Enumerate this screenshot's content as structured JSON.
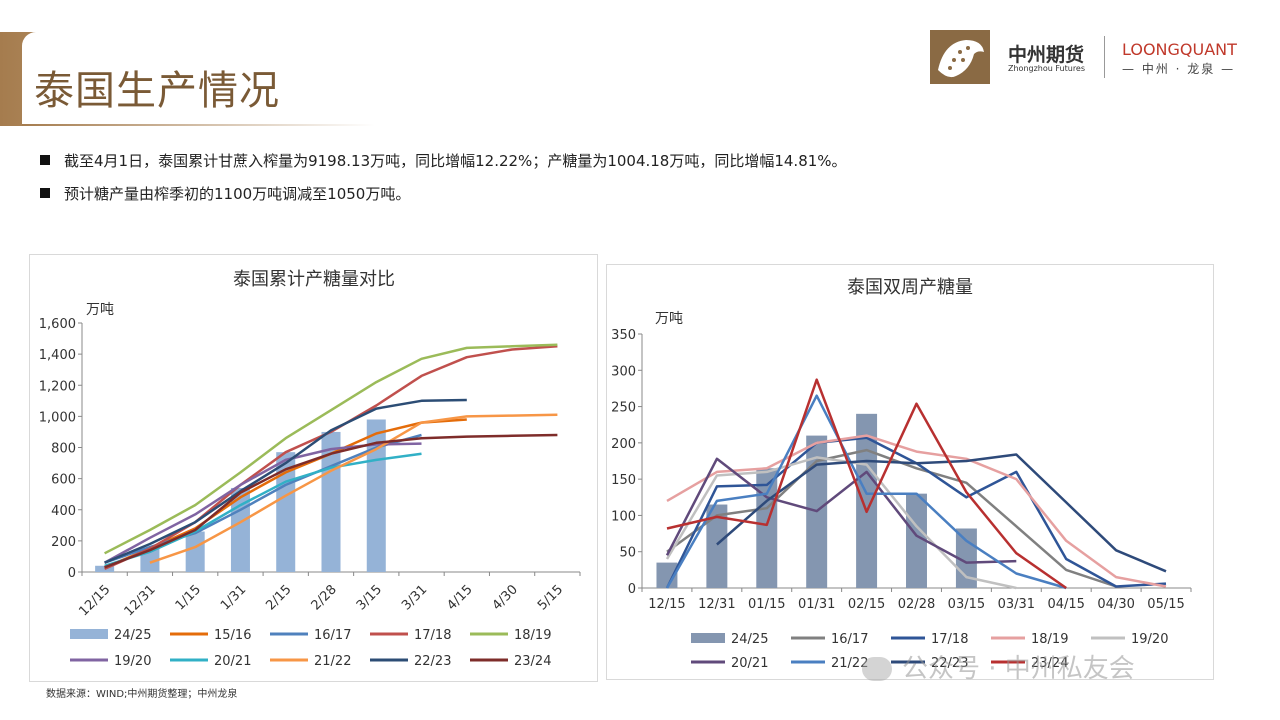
{
  "page": {
    "title": "泰国生产情况",
    "bullets": [
      "截至4月1日，泰国累计甘蔗入榨量为9198.13万吨，同比增幅12.22%；产糖量为1004.18万吨，同比增幅14.81%。",
      "预计糖产量由榨季初的1100万吨调减至1050万吨。"
    ],
    "source": "数据来源：WIND;中州期货整理；中州龙泉",
    "watermark": "公众号 · 中州私友会"
  },
  "logo": {
    "cn": "中州期货",
    "en": "Zhongzhou Futures",
    "lq": "LOONGQUANT",
    "lq_sub": "— 中州 · 龙泉 —"
  },
  "chart_data": [
    {
      "type": "bar+line",
      "title": "泰国累计产糖量对比",
      "ylabel": "万吨",
      "ylim": [
        0,
        1600
      ],
      "yticks": [
        "0",
        "200",
        "400",
        "600",
        "800",
        "1,000",
        "1,200",
        "1,400",
        "1,600"
      ],
      "categories": [
        "12/15",
        "12/31",
        "1/15",
        "1/31",
        "2/15",
        "2/28",
        "3/15",
        "3/31",
        "4/15",
        "4/30",
        "5/15"
      ],
      "legend": "bottom",
      "bar_series": {
        "name": "24/25",
        "color": "#95b3d7",
        "values": [
          40,
          150,
          260,
          540,
          770,
          900,
          980,
          null,
          null,
          null,
          null
        ]
      },
      "series": [
        {
          "name": "15/16",
          "color": "#e46c0a",
          "values": [
            30,
            150,
            280,
            480,
            640,
            760,
            890,
            960,
            980,
            null,
            null
          ]
        },
        {
          "name": "16/17",
          "color": "#4f81bd",
          "values": [
            60,
            160,
            250,
            400,
            560,
            680,
            800,
            880,
            null,
            null,
            null
          ]
        },
        {
          "name": "17/18",
          "color": "#c0504d",
          "values": [
            20,
            150,
            320,
            560,
            770,
            900,
            1070,
            1260,
            1380,
            1430,
            1450
          ]
        },
        {
          "name": "18/19",
          "color": "#9bbb59",
          "values": [
            120,
            270,
            430,
            640,
            860,
            1040,
            1220,
            1370,
            1440,
            1450,
            1460
          ]
        },
        {
          "name": "19/20",
          "color": "#8064a2",
          "values": [
            60,
            220,
            370,
            560,
            720,
            790,
            820,
            825,
            null,
            null,
            null
          ]
        },
        {
          "name": "20/21",
          "color": "#31b0c6",
          "values": [
            40,
            130,
            260,
            430,
            580,
            670,
            720,
            760,
            null,
            null,
            null
          ]
        },
        {
          "name": "21/22",
          "color": "#f79646",
          "values": [
            null,
            60,
            160,
            320,
            490,
            650,
            790,
            960,
            1000,
            1005,
            1010
          ]
        },
        {
          "name": "22/23",
          "color": "#2c4d75",
          "values": [
            60,
            180,
            320,
            520,
            700,
            910,
            1050,
            1100,
            1105,
            null,
            null
          ]
        },
        {
          "name": "23/24",
          "color": "#7e2c2a",
          "values": [
            30,
            140,
            270,
            510,
            660,
            760,
            830,
            860,
            870,
            875,
            880
          ]
        }
      ]
    },
    {
      "type": "bar+line",
      "title": "泰国双周产糖量",
      "ylabel": "万吨",
      "ylim": [
        0,
        350
      ],
      "yticks": [
        "0",
        "50",
        "100",
        "150",
        "200",
        "250",
        "300",
        "350"
      ],
      "categories": [
        "12/15",
        "12/31",
        "01/15",
        "01/31",
        "02/15",
        "02/28",
        "03/15",
        "03/31",
        "04/15",
        "04/30",
        "05/15"
      ],
      "legend": "bottom",
      "bar_series": {
        "name": "24/25",
        "color": "#8496b0",
        "values": [
          35,
          115,
          165,
          210,
          240,
          130,
          82,
          null,
          null,
          null,
          null
        ]
      },
      "series": [
        {
          "name": "16/17",
          "color": "#808080",
          "values": [
            50,
            100,
            110,
            175,
            190,
            165,
            145,
            85,
            25,
            2,
            null
          ]
        },
        {
          "name": "17/18",
          "color": "#2f5597",
          "values": [
            0,
            140,
            142,
            200,
            207,
            172,
            125,
            160,
            40,
            2,
            6
          ]
        },
        {
          "name": "18/19",
          "color": "#e6a0a0",
          "values": [
            120,
            160,
            165,
            200,
            210,
            188,
            178,
            150,
            65,
            15,
            2
          ]
        },
        {
          "name": "19/20",
          "color": "#c0c0c0",
          "values": [
            40,
            155,
            160,
            180,
            170,
            85,
            15,
            0,
            null,
            null,
            null
          ]
        },
        {
          "name": "20/21",
          "color": "#604a7b",
          "values": [
            45,
            178,
            125,
            106,
            160,
            72,
            35,
            37,
            null,
            null,
            null
          ]
        },
        {
          "name": "21/22",
          "color": "#4a7fc1",
          "values": [
            0,
            120,
            130,
            265,
            130,
            130,
            65,
            20,
            0,
            null,
            null
          ]
        },
        {
          "name": "22/23",
          "color": "#2e4a7a",
          "values": [
            null,
            60,
            120,
            170,
            175,
            172,
            175,
            184,
            118,
            52,
            23
          ]
        },
        {
          "name": "23/24",
          "color": "#b83030",
          "values": [
            82,
            98,
            87,
            287,
            105,
            254,
            132,
            48,
            0,
            null,
            null
          ]
        }
      ]
    }
  ]
}
